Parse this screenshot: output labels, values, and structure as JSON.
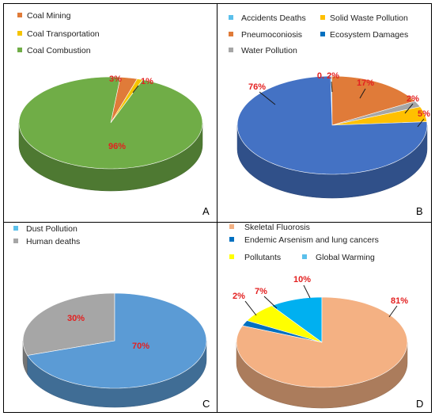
{
  "chart_data": [
    {
      "panel": "A",
      "type": "pie",
      "title": "",
      "legend_position": "top-left",
      "series": [
        {
          "name": "Coal Mining",
          "value": 3,
          "label": "3%",
          "color": "#E07B39"
        },
        {
          "name": "Coal Transportation",
          "value": 1,
          "label": "1%",
          "color": "#F5C400"
        },
        {
          "name": "Coal Combustion",
          "value": 96,
          "label": "96%",
          "color": "#70AD47"
        }
      ]
    },
    {
      "panel": "B",
      "type": "pie",
      "title": "",
      "legend_position": "top",
      "series": [
        {
          "name": "Accidents Deaths",
          "value": 0.2,
          "label": "0. 2%",
          "color": "#5BC0EB"
        },
        {
          "name": "Pneumoconiosis",
          "value": 17,
          "label": "17%",
          "color": "#E07B39"
        },
        {
          "name": "Water Pollution",
          "value": 2,
          "label": "2%",
          "color": "#A6A6A6"
        },
        {
          "name": "Solid Waste Pollution",
          "value": 5,
          "label": "5%",
          "color": "#FFC000"
        },
        {
          "name": "Ecosystem Damages",
          "value": 76,
          "label": "76%",
          "color": "#4472C4",
          "legend_color": "#0070C0"
        }
      ]
    },
    {
      "panel": "C",
      "type": "pie",
      "title": "",
      "legend_position": "top-left",
      "series": [
        {
          "name": "Human deaths",
          "value": 30,
          "label": "30%",
          "color": "#A6A6A6"
        },
        {
          "name": "Dust Pollution",
          "value": 70,
          "label": "70%",
          "color": "#5B9BD5",
          "legend_color": "#5BC0EB"
        }
      ]
    },
    {
      "panel": "D",
      "type": "pie",
      "title": "",
      "legend_position": "top",
      "series": [
        {
          "name": "Global Warming",
          "value": 10,
          "label": "10%",
          "color": "#00B0F0",
          "legend_color": "#5BC0EB"
        },
        {
          "name": "Skeletal Fluorosis",
          "value": 81,
          "label": "81%",
          "color": "#F4B183"
        },
        {
          "name": "Endemic Arsenism and lung cancers",
          "value": 2,
          "label": "2%",
          "color": "#0070C0"
        },
        {
          "name": "Pollutants",
          "value": 7,
          "label": "7%",
          "color": "#FFFF00"
        }
      ]
    }
  ],
  "panels": {
    "A": {
      "letter": "A",
      "legend": [
        "Coal Mining",
        "Coal Transportation",
        "Coal Combustion"
      ]
    },
    "B": {
      "letter": "B",
      "legend": [
        "Accidents Deaths",
        "Solid Waste Pollution",
        "Pneumoconiosis",
        "Ecosystem Damages",
        "Water Pollution"
      ]
    },
    "C": {
      "letter": "C",
      "legend": [
        "Dust Pollution",
        "Human deaths"
      ]
    },
    "D": {
      "letter": "D",
      "legend": [
        "Skeletal Fluorosis",
        "Endemic Arsenism and lung cancers",
        "Pollutants",
        "Global Warming"
      ]
    }
  }
}
